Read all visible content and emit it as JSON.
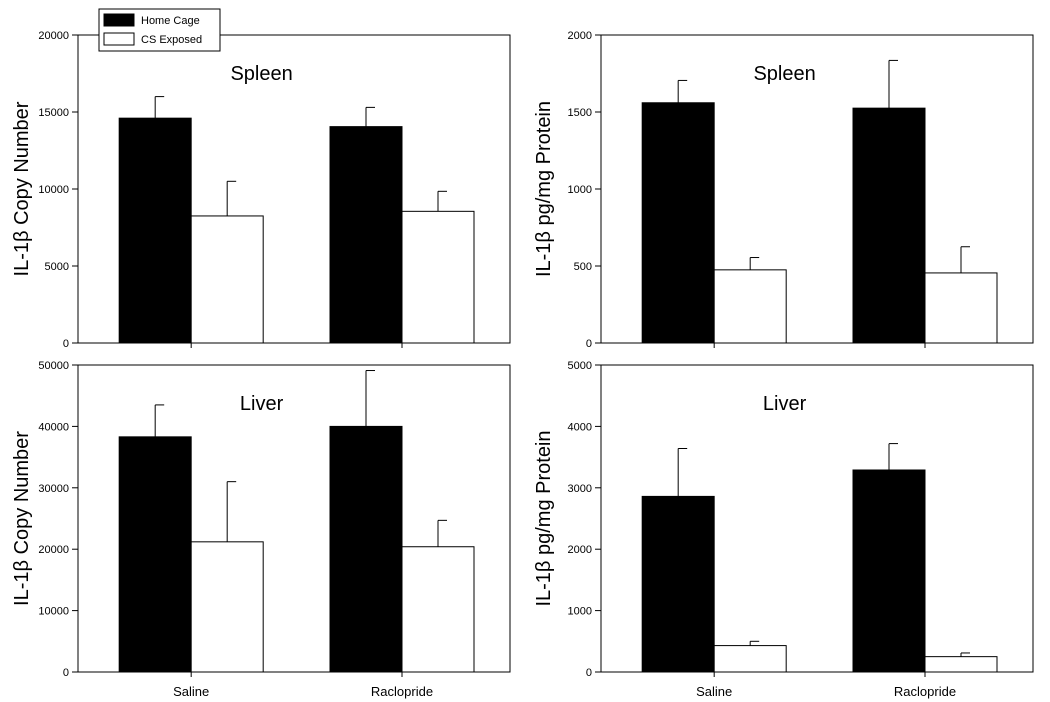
{
  "legend": {
    "home_cage": "Home Cage",
    "cs_exposed": "CS Exposed"
  },
  "colors": {
    "home_cage": "#000000",
    "cs_exposed": "#ffffff",
    "axis": "#000000"
  },
  "chart_data": [
    {
      "id": "spleen-copy",
      "type": "bar",
      "title": "Spleen",
      "ylabel": "IL-1β Copy Number",
      "xlabel": "",
      "categories": [
        "Saline",
        "Raclopride"
      ],
      "show_category_labels": false,
      "ylim": [
        0,
        20000
      ],
      "yticks": [
        0,
        5000,
        10000,
        15000,
        20000
      ],
      "series": [
        {
          "name": "Home Cage",
          "values": [
            14600,
            14050
          ],
          "errors": [
            1400,
            1250
          ]
        },
        {
          "name": "CS Exposed",
          "values": [
            8250,
            8550
          ],
          "errors": [
            2250,
            1300
          ]
        }
      ]
    },
    {
      "id": "spleen-protein",
      "type": "bar",
      "title": "Spleen",
      "ylabel": "IL-1β pg/mg Protein",
      "xlabel": "",
      "categories": [
        "Saline",
        "Raclopride"
      ],
      "show_category_labels": false,
      "ylim": [
        0,
        2000
      ],
      "yticks": [
        0,
        500,
        1000,
        1500,
        2000
      ],
      "series": [
        {
          "name": "Home Cage",
          "values": [
            1560,
            1525
          ],
          "errors": [
            145,
            310
          ]
        },
        {
          "name": "CS Exposed",
          "values": [
            475,
            455
          ],
          "errors": [
            80,
            170
          ]
        }
      ]
    },
    {
      "id": "liver-copy",
      "type": "bar",
      "title": "Liver",
      "ylabel": "IL-1β Copy Number",
      "xlabel": "",
      "categories": [
        "Saline",
        "Raclopride"
      ],
      "show_category_labels": true,
      "ylim": [
        0,
        50000
      ],
      "yticks": [
        0,
        10000,
        20000,
        30000,
        40000,
        50000
      ],
      "series": [
        {
          "name": "Home Cage",
          "values": [
            38300,
            40000
          ],
          "errors": [
            5200,
            9100
          ]
        },
        {
          "name": "CS Exposed",
          "values": [
            21200,
            20400
          ],
          "errors": [
            9800,
            4300
          ]
        }
      ]
    },
    {
      "id": "liver-protein",
      "type": "bar",
      "title": "Liver",
      "ylabel": "IL-1β pg/mg Protein",
      "xlabel": "",
      "categories": [
        "Saline",
        "Raclopride"
      ],
      "show_category_labels": true,
      "ylim": [
        0,
        5000
      ],
      "yticks": [
        0,
        1000,
        2000,
        3000,
        4000,
        5000
      ],
      "series": [
        {
          "name": "Home Cage",
          "values": [
            2860,
            3290
          ],
          "errors": [
            780,
            430
          ]
        },
        {
          "name": "CS Exposed",
          "values": [
            430,
            250
          ],
          "errors": [
            70,
            60
          ]
        }
      ]
    }
  ]
}
